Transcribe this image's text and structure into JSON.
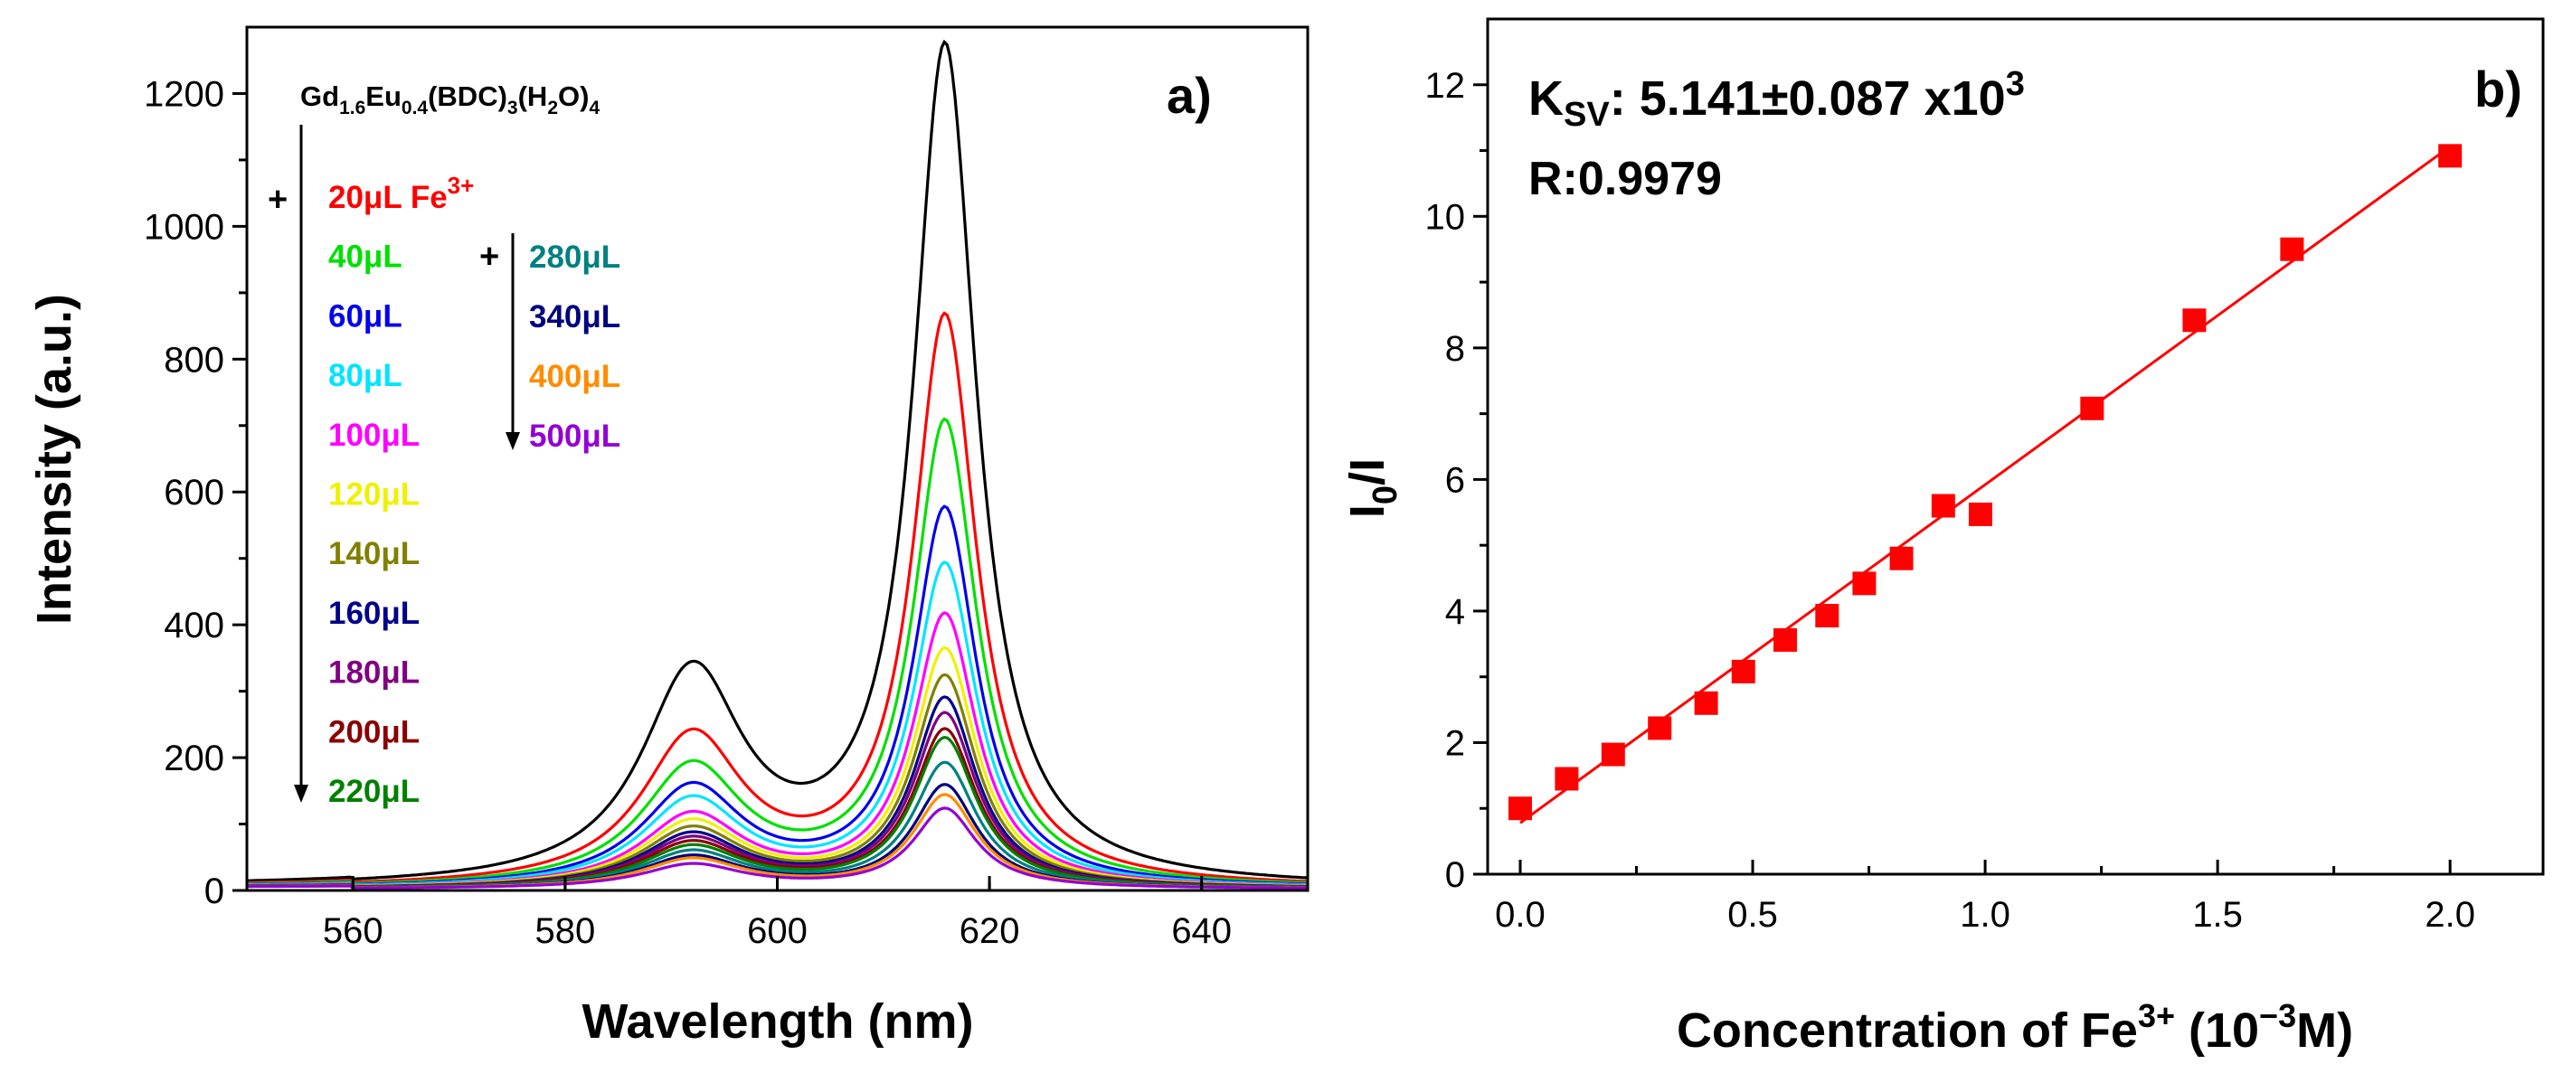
{
  "chart_data": [
    {
      "type": "line",
      "panel_label": "a)",
      "title_parts": [
        "Gd",
        "1.6",
        "Eu",
        "0.4",
        "(BDC)",
        "3",
        "(H",
        "2",
        "O)",
        "4"
      ],
      "xlabel": "Wavelength (nm)",
      "ylabel": "Intensity (a.u.)",
      "xlim": [
        550,
        650
      ],
      "ylim": [
        0,
        1300
      ],
      "x_ticks": [
        560,
        580,
        600,
        620,
        640
      ],
      "y_ticks": [
        0,
        200,
        400,
        600,
        800,
        1000,
        1200
      ],
      "plus_symbol": "+",
      "legend_suffix_first": "Fe",
      "legend_suffix_sup": "3+",
      "series": [
        {
          "name": "",
          "color": "#000000",
          "peak1": 315,
          "peak2": 1258
        },
        {
          "name": "20μL",
          "color": "#ff0000",
          "peak1": 222,
          "peak2": 855
        },
        {
          "name": "40μL",
          "color": "#00e000",
          "peak1": 178,
          "peak2": 698
        },
        {
          "name": "60μL",
          "color": "#0000ee",
          "peak1": 148,
          "peak2": 568
        },
        {
          "name": "80μL",
          "color": "#00e5ff",
          "peak1": 130,
          "peak2": 485
        },
        {
          "name": "100μL",
          "color": "#ff00ff",
          "peak1": 108,
          "peak2": 410
        },
        {
          "name": "120μL",
          "color": "#f0f000",
          "peak1": 98,
          "peak2": 358
        },
        {
          "name": "140μL",
          "color": "#808000",
          "peak1": 88,
          "peak2": 318
        },
        {
          "name": "160μL",
          "color": "#00008b",
          "peak1": 80,
          "peak2": 285
        },
        {
          "name": "180μL",
          "color": "#800080",
          "peak1": 74,
          "peak2": 262
        },
        {
          "name": "200μL",
          "color": "#8b0000",
          "peak1": 68,
          "peak2": 238
        },
        {
          "name": "220μL",
          "color": "#008000",
          "peak1": 62,
          "peak2": 225
        },
        {
          "name": "280μL",
          "color": "#008080",
          "peak1": 55,
          "peak2": 188
        },
        {
          "name": "340μL",
          "color": "#000080",
          "peak1": 48,
          "peak2": 155
        },
        {
          "name": "400μL",
          "color": "#ff8c00",
          "peak1": 44,
          "peak2": 140
        },
        {
          "name": "500μL",
          "color": "#9400d3",
          "peak1": 36,
          "peak2": 120
        }
      ]
    },
    {
      "type": "scatter",
      "panel_label": "b)",
      "ksv_label": "K",
      "ksv_sub": "SV",
      "ksv_value": ": 5.141±0.087 x10",
      "ksv_exp": "3",
      "r_text": "R:0.9979",
      "xlabel_main": "Concentration of Fe",
      "xlabel_sup": "3+",
      "xlabel_unit_pre": " (10",
      "xlabel_unit_sup": "−3",
      "xlabel_unit_post": "M)",
      "ylabel_main": "I",
      "ylabel_sub": "0",
      "ylabel_post": "/I",
      "xlim": [
        -0.07,
        2.2
      ],
      "ylim": [
        0,
        13
      ],
      "x_ticks": [
        "0.0",
        "0.5",
        "1.0",
        "1.5",
        "2.0"
      ],
      "y_ticks": [
        "0",
        "2",
        "4",
        "6",
        "8",
        "10",
        "12"
      ],
      "color": "#ff0000",
      "x": [
        0.0,
        0.1,
        0.2,
        0.3,
        0.4,
        0.48,
        0.57,
        0.66,
        0.74,
        0.82,
        0.91,
        0.99,
        1.23,
        1.45,
        1.66,
        2.0
      ],
      "y": [
        1.0,
        1.45,
        1.82,
        2.22,
        2.6,
        3.08,
        3.56,
        3.93,
        4.42,
        4.8,
        5.6,
        5.47,
        7.08,
        8.42,
        9.5,
        10.92
      ],
      "fit": {
        "slope": 5.141,
        "intercept": 0.78
      }
    }
  ]
}
